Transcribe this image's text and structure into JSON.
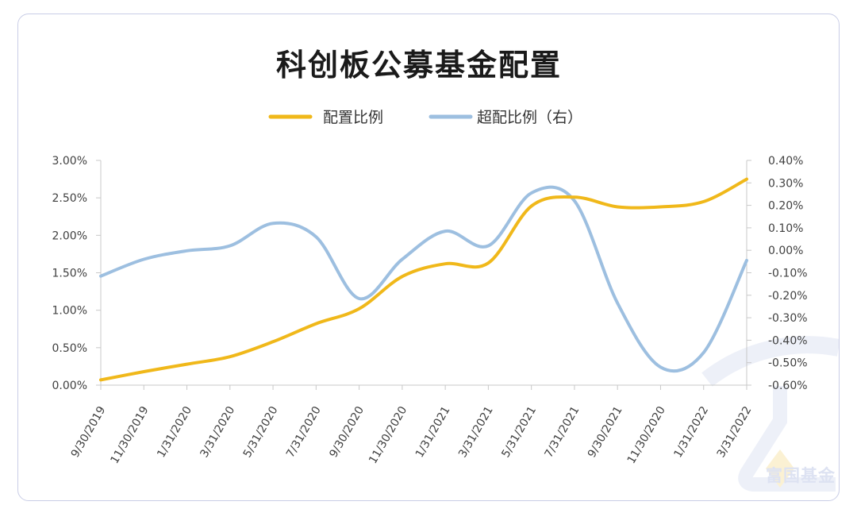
{
  "chart_data": {
    "type": "line",
    "title": "科创板公募基金配置",
    "x": [
      "9/30/2019",
      "11/30/2019",
      "1/31/2020",
      "3/31/2020",
      "5/31/2020",
      "7/31/2020",
      "9/30/2020",
      "11/30/2020",
      "1/31/2021",
      "3/31/2021",
      "5/31/2021",
      "7/31/2021",
      "9/30/2021",
      "11/30/2020",
      "1/31/2022",
      "3/31/2022"
    ],
    "series": [
      {
        "name": "配置比例",
        "axis": "left",
        "color": "#f0b81a",
        "values": [
          0.07,
          0.18,
          0.28,
          0.38,
          0.58,
          0.82,
          1.02,
          1.45,
          1.62,
          1.63,
          2.39,
          2.51,
          2.38,
          2.38,
          2.45,
          2.75
        ]
      },
      {
        "name": "超配比例（右）",
        "axis": "right",
        "color": "#9dbfe0",
        "values": [
          -0.115,
          -0.04,
          -0.002,
          0.02,
          0.12,
          0.06,
          -0.215,
          -0.04,
          0.085,
          0.02,
          0.255,
          0.22,
          -0.235,
          -0.52,
          -0.455,
          -0.045
        ]
      }
    ],
    "y_left": {
      "min": 0,
      "max": 3,
      "ticks": [
        0,
        0.5,
        1,
        1.5,
        2,
        2.5,
        3
      ],
      "tick_labels": [
        "0.00%",
        "0.50%",
        "1.00%",
        "1.50%",
        "2.00%",
        "2.50%",
        "3.00%"
      ]
    },
    "y_right": {
      "min": -0.6,
      "max": 0.4,
      "ticks": [
        -0.6,
        -0.5,
        -0.4,
        -0.3,
        -0.2,
        -0.1,
        0,
        0.1,
        0.2,
        0.3,
        0.4
      ],
      "tick_labels": [
        "-0.60%",
        "-0.50%",
        "-0.40%",
        "-0.30%",
        "-0.20%",
        "-0.10%",
        "0.00%",
        "0.10%",
        "0.20%",
        "0.30%",
        "0.40%"
      ]
    },
    "grid": false,
    "legend_position": "top-center"
  },
  "watermark": {
    "text": "富国基金"
  }
}
